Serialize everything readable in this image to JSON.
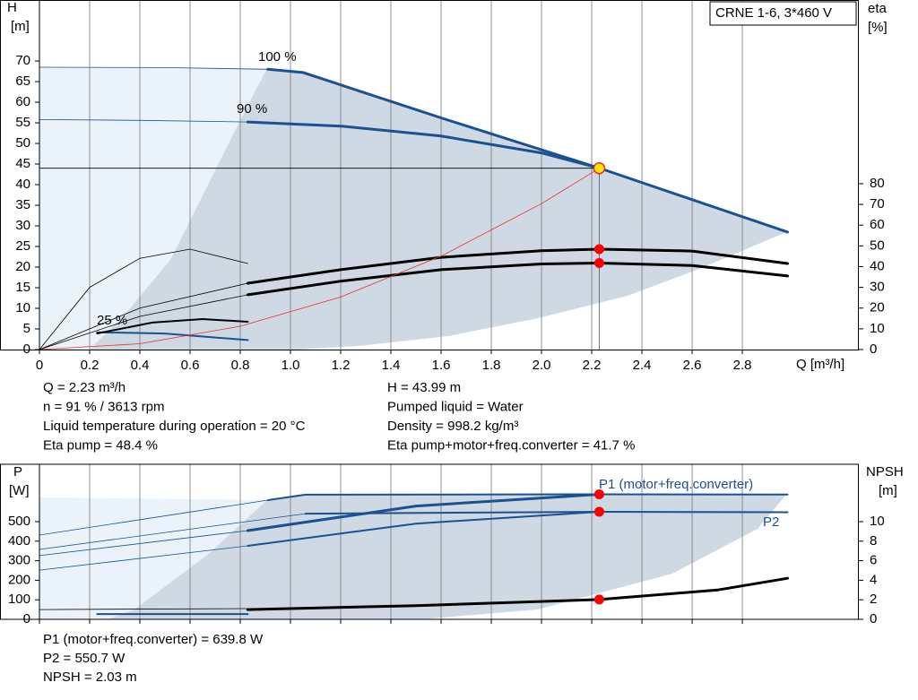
{
  "chart_data": [
    {
      "type": "line",
      "title": "CRNE 1-6, 3*460 V",
      "xlabel": "Q [m³/h]",
      "ylabel": [
        "H",
        "[m]"
      ],
      "y2label": [
        "eta",
        "[%]"
      ],
      "xlim": [
        0,
        3.264
      ],
      "ylim": [
        0,
        84.8
      ],
      "y2lim": [
        0,
        168.6
      ],
      "xticks": [
        0,
        0.2,
        0.4,
        0.6,
        0.8,
        {
          "value": 1,
          "label": "1.0"
        },
        1.2,
        1.4,
        1.6,
        1.8,
        {
          "value": 2,
          "label": "2.0"
        },
        2.2,
        2.4,
        2.6,
        2.8
      ],
      "yticks": [
        0,
        5,
        10,
        15,
        20,
        25,
        30,
        35,
        40,
        45,
        50,
        55,
        60,
        65,
        70
      ],
      "y2ticks": [
        0,
        10,
        20,
        30,
        40,
        50,
        60,
        70,
        80
      ],
      "grid": "x",
      "annotations": [
        "100 %",
        "90 %",
        "25 %"
      ],
      "series": [
        {
          "color": "#1a5192",
          "style": "thin",
          "x": [
            0,
            0.5,
            0.91
          ],
          "values": [
            68.5,
            68.4,
            68.0
          ]
        },
        {
          "color": "#1a5192",
          "style": "thick",
          "x": [
            0.91,
            1.05,
            1.6,
            2.23,
            2.98
          ],
          "values": [
            68.0,
            67.2,
            56.2,
            44.0,
            28.5
          ]
        },
        {
          "color": "#1a5192",
          "style": "thin",
          "x": [
            0,
            0.4,
            0.83
          ],
          "values": [
            55.8,
            55.6,
            55.2
          ]
        },
        {
          "color": "#1a5192",
          "style": "thick",
          "x": [
            0.83,
            1.2,
            1.6,
            2.0,
            2.23
          ],
          "values": [
            55.2,
            54.2,
            51.8,
            47.7,
            44.0
          ]
        },
        {
          "color": "#1a5192",
          "style": "medium",
          "x": [
            0.23,
            0.5,
            0.83
          ],
          "values": [
            4.2,
            3.9,
            2.3
          ]
        },
        {
          "color": "#000000",
          "style": "thin",
          "axis": "y2",
          "x": [
            0,
            0.4,
            0.83
          ],
          "values": [
            0,
            20,
            32
          ]
        },
        {
          "color": "#000000",
          "style": "thin",
          "axis": "y2",
          "x": [
            0,
            0.4,
            0.83
          ],
          "values": [
            0,
            16,
            26.4
          ]
        },
        {
          "color": "#000000",
          "style": "thick",
          "axis": "y2",
          "x": [
            0.83,
            1.2,
            1.6,
            2.0,
            2.23,
            2.6,
            2.98
          ],
          "values": [
            32,
            38.5,
            44.5,
            47.7,
            48.4,
            47.5,
            41.5
          ]
        },
        {
          "color": "#000000",
          "style": "thick",
          "axis": "y2",
          "x": [
            0.83,
            1.2,
            1.6,
            2.0,
            2.23,
            2.6,
            2.98
          ],
          "values": [
            26.4,
            33,
            38.5,
            41.3,
            41.7,
            40.5,
            35.5
          ]
        },
        {
          "color": "#000000",
          "style": "thin",
          "axis": "y2",
          "x": [
            0,
            0.2,
            0.4,
            0.6,
            0.83
          ],
          "values": [
            0,
            30,
            44,
            48.4,
            41.5
          ]
        },
        {
          "color": "#000000",
          "style": "medium",
          "axis": "y2",
          "x": [
            0.23,
            0.45,
            0.65,
            0.83
          ],
          "values": [
            7.8,
            13,
            14.7,
            13.4
          ]
        },
        {
          "color": "#e8302a",
          "style": "thin",
          "x": [
            0,
            0.4,
            0.8,
            1.2,
            1.6,
            2.0,
            2.23
          ],
          "values": [
            0,
            1.42,
            5.66,
            12.74,
            22.65,
            35.39,
            43.99
          ]
        }
      ],
      "points": [
        {
          "x": 2.23,
          "y": 43.99,
          "color": "#ffe600",
          "crosshair": true
        },
        {
          "x": 2.23,
          "y": 48.4,
          "axis": "y2",
          "color": "#ff0000"
        },
        {
          "x": 2.23,
          "y": 41.7,
          "axis": "y2",
          "color": "#ff0000"
        }
      ]
    },
    {
      "type": "line",
      "ylabel": [
        "P",
        "[W]"
      ],
      "y2label": [
        "NPSH",
        "[m]"
      ],
      "xlim": [
        0,
        3.264
      ],
      "ylim": [
        0,
        793.6
      ],
      "y2lim": [
        0,
        15.87
      ],
      "xticks": [
        0,
        0.2,
        0.4,
        0.6,
        0.8,
        1,
        1.2,
        1.4,
        1.6,
        1.8,
        2,
        2.2,
        2.4,
        2.6,
        2.8
      ],
      "show_xtick_labels": false,
      "yticks": [
        0,
        100,
        200,
        300,
        400,
        500
      ],
      "y2ticks": [
        0,
        2,
        4,
        6,
        8,
        10
      ],
      "grid": "x",
      "annotations": [
        "P1 (motor+freq.converter)",
        "P2"
      ],
      "series": [
        {
          "color": "#1a5192",
          "style": "thin",
          "x": [
            0,
            0.91
          ],
          "values": [
            431,
            610
          ]
        },
        {
          "color": "#1a5192",
          "style": "medium",
          "x": [
            0.91,
            1.06,
            2.23,
            2.98
          ],
          "values": [
            610,
            638,
            639.8,
            639
          ]
        },
        {
          "color": "#1a5192",
          "style": "thin",
          "x": [
            0,
            1.06
          ],
          "values": [
            358,
            541
          ]
        },
        {
          "color": "#1a5192",
          "style": "medium",
          "x": [
            1.06,
            2.23,
            2.98
          ],
          "values": [
            541,
            550.7,
            548
          ]
        },
        {
          "color": "#1a5192",
          "style": "thin",
          "x": [
            0,
            0.83
          ],
          "values": [
            326,
            454
          ]
        },
        {
          "color": "#1a5192",
          "style": "thick",
          "x": [
            0.83,
            1.5,
            2.23
          ],
          "values": [
            454,
            580,
            639.8
          ]
        },
        {
          "color": "#1a5192",
          "style": "thin",
          "x": [
            0,
            0.83
          ],
          "values": [
            252,
            376
          ]
        },
        {
          "color": "#1a5192",
          "style": "medium",
          "x": [
            0.83,
            1.5,
            2.23
          ],
          "values": [
            376,
            490,
            550.7
          ]
        },
        {
          "color": "#000000",
          "style": "thin",
          "x": [
            0,
            0.83
          ],
          "values": [
            50,
            55
          ]
        },
        {
          "color": "#1a5192",
          "style": "medium",
          "x": [
            0.23,
            0.83
          ],
          "values": [
            27,
            27
          ]
        },
        {
          "color": "#000000",
          "style": "thick",
          "axis": "y2",
          "x": [
            0.83,
            1.5,
            2.23,
            2.7,
            2.98
          ],
          "values": [
            1.0,
            1.4,
            2.03,
            3.0,
            4.2
          ]
        }
      ],
      "points": [
        {
          "x": 2.23,
          "y": 639.8,
          "color": "#ff0000"
        },
        {
          "x": 2.23,
          "y": 550.7,
          "color": "#ff0000"
        },
        {
          "x": 2.23,
          "y": 2.03,
          "axis": "y2",
          "color": "#ff0000"
        }
      ]
    }
  ],
  "info_left": [
    "Q = 2.23 m³/h",
    "n = 91 % / 3613 rpm",
    "Liquid temperature during operation = 20 °C",
    "Eta pump = 48.4 %"
  ],
  "info_right": [
    "H = 43.99 m",
    "Pumped liquid = Water",
    "Density = 998.2 kg/m³",
    "Eta pump+motor+freq.converter = 41.7 %"
  ],
  "info_bottom": [
    "P1 (motor+freq.converter) = 639.8 W",
    "P2 = 550.7 W",
    "NPSH = 2.03 m"
  ]
}
